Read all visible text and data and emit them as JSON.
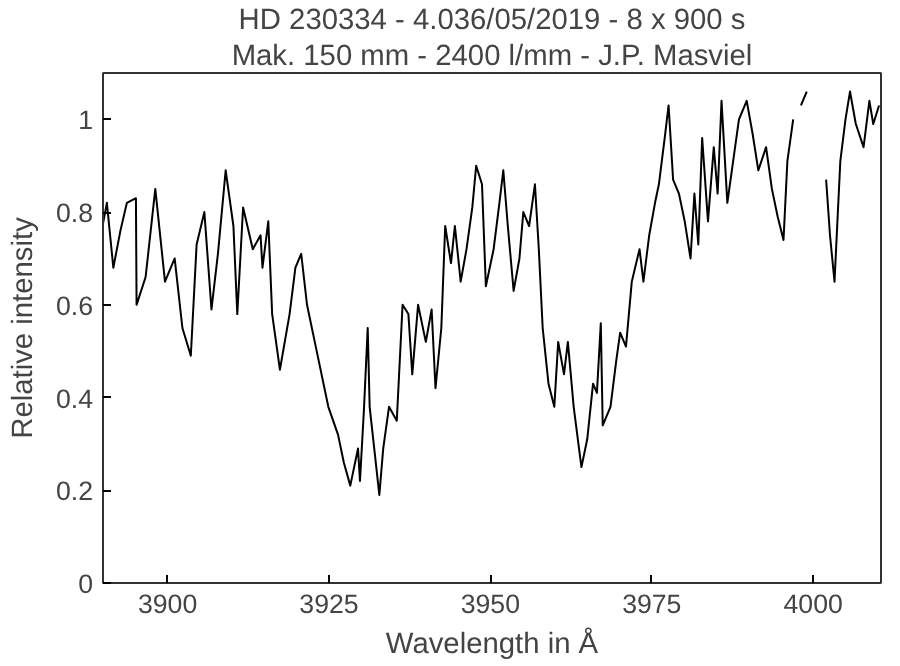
{
  "chart_data": {
    "type": "line",
    "title": "HD 230334 - 4.036/05/2019 - 8 x 900 s",
    "subtitle": "Mak. 150 mm - 2400 l/mm - J.P. Masviel",
    "xlabel": "Wavelength in Å",
    "ylabel": "Relative intensity",
    "xlim": [
      3890,
      4010.5
    ],
    "ylim": [
      0,
      1.1
    ],
    "xticks": [
      3900,
      3925,
      3950,
      3975,
      4000
    ],
    "yticks": [
      0,
      0.2,
      0.4,
      0.6,
      0.8,
      1
    ],
    "grid": false,
    "marker": "none",
    "line_style": "solid",
    "series": [
      {
        "color": "#000000",
        "x": [
          3890,
          3890.6,
          3891.6,
          3892.7,
          3893.7,
          3895.1,
          3895.2,
          3896.6,
          3898.1,
          3899.6,
          3901.1,
          3902.3,
          3903.6,
          3904.5,
          3905.7,
          3906.8,
          3907.8,
          3909.0,
          3910.2,
          3910.8,
          3911.7,
          3913.2,
          3914.4,
          3914.7,
          3915.6,
          3916.2,
          3917.4,
          3918.9,
          3919.8,
          3920.7,
          3921.6,
          3922.8,
          3924.9,
          3926.4,
          3927.3,
          3928.3,
          3929.5,
          3929.8,
          3930.4,
          3931.0,
          3931.3,
          3932.8,
          3933.4,
          3934.3,
          3935.5,
          3936.4,
          3937.3,
          3937.9,
          3938.8,
          3940.0,
          3940.9,
          3941.5,
          3942.4,
          3943.0,
          3943.9,
          3944.5,
          3945.4,
          3946.3,
          3947.2,
          3947.8,
          3948.7,
          3949.3,
          3950.5,
          3951.4,
          3952.0,
          3952.7,
          3953.6,
          3954.5,
          3955.1,
          3956.0,
          3956.9,
          3957.5,
          3958.1,
          3959.0,
          3959.9,
          3960.5,
          3961.4,
          3962.0,
          3962.9,
          3964.1,
          3965.0,
          3965.9,
          3966.5,
          3967.1,
          3967.4,
          3968.6,
          3969.5,
          3970.1,
          3971.0,
          3971.9,
          3973.1,
          3973.7,
          3974.6,
          3975.5,
          3976.1,
          3977.0,
          3977.6,
          3978.3,
          3979.2,
          3980.1,
          3981.0,
          3981.6,
          3982.2,
          3982.8,
          3983.7,
          3984.6,
          3985.2,
          3985.8,
          3986.7,
          3987.6,
          3988.5,
          3989.7,
          3990.6,
          3991.5,
          3992.7,
          3993.6,
          3994.5,
          3995.4,
          3996.0,
          3996.9,
          3997.5,
          3998.1,
          3999.0,
          4000.2,
          4001.1,
          4002.0,
          4002.6,
          4003.3,
          4004.2,
          4005.0,
          4005.7,
          4006.6,
          4007.8,
          4008.7,
          4009.3,
          4010.2
        ],
        "values": [
          0.775,
          0.82,
          0.68,
          0.76,
          0.82,
          0.83,
          0.6,
          0.66,
          0.85,
          0.65,
          0.7,
          0.55,
          0.49,
          0.73,
          0.8,
          0.59,
          0.71,
          0.89,
          0.77,
          0.58,
          0.81,
          0.72,
          0.75,
          0.68,
          0.78,
          0.58,
          0.46,
          0.58,
          0.68,
          0.71,
          0.6,
          0.52,
          0.38,
          0.32,
          0.26,
          0.21,
          0.29,
          0.22,
          0.37,
          0.55,
          0.38,
          0.19,
          0.29,
          0.38,
          0.35,
          0.6,
          0.58,
          0.45,
          0.6,
          0.52,
          0.59,
          0.42,
          0.55,
          0.77,
          0.69,
          0.77,
          0.65,
          0.72,
          0.81,
          0.9,
          0.86,
          0.64,
          0.72,
          0.82,
          0.89,
          0.77,
          0.63,
          0.7,
          0.8,
          0.77,
          0.86,
          0.72,
          0.55,
          0.43,
          0.38,
          0.52,
          0.45,
          0.52,
          0.38,
          0.25,
          0.31,
          0.43,
          0.41,
          0.56,
          0.34,
          0.38,
          0.48,
          0.54,
          0.51,
          0.65,
          0.72,
          0.65,
          0.75,
          0.82,
          0.86,
          0.96,
          1.03,
          0.87,
          0.84,
          0.78,
          0.7,
          0.84,
          0.73,
          0.96,
          0.78,
          0.94,
          0.84,
          1.04,
          0.82,
          0.91,
          1.0,
          1.04,
          0.97,
          0.89,
          0.94,
          0.85,
          0.79,
          0.74,
          0.91,
          1.0,
          null,
          1.03,
          1.06,
          null,
          null,
          0.87,
          0.75,
          0.65,
          0.91,
          1.0,
          1.06,
          0.99,
          0.94,
          1.04,
          0.99,
          1.03
        ]
      }
    ]
  }
}
